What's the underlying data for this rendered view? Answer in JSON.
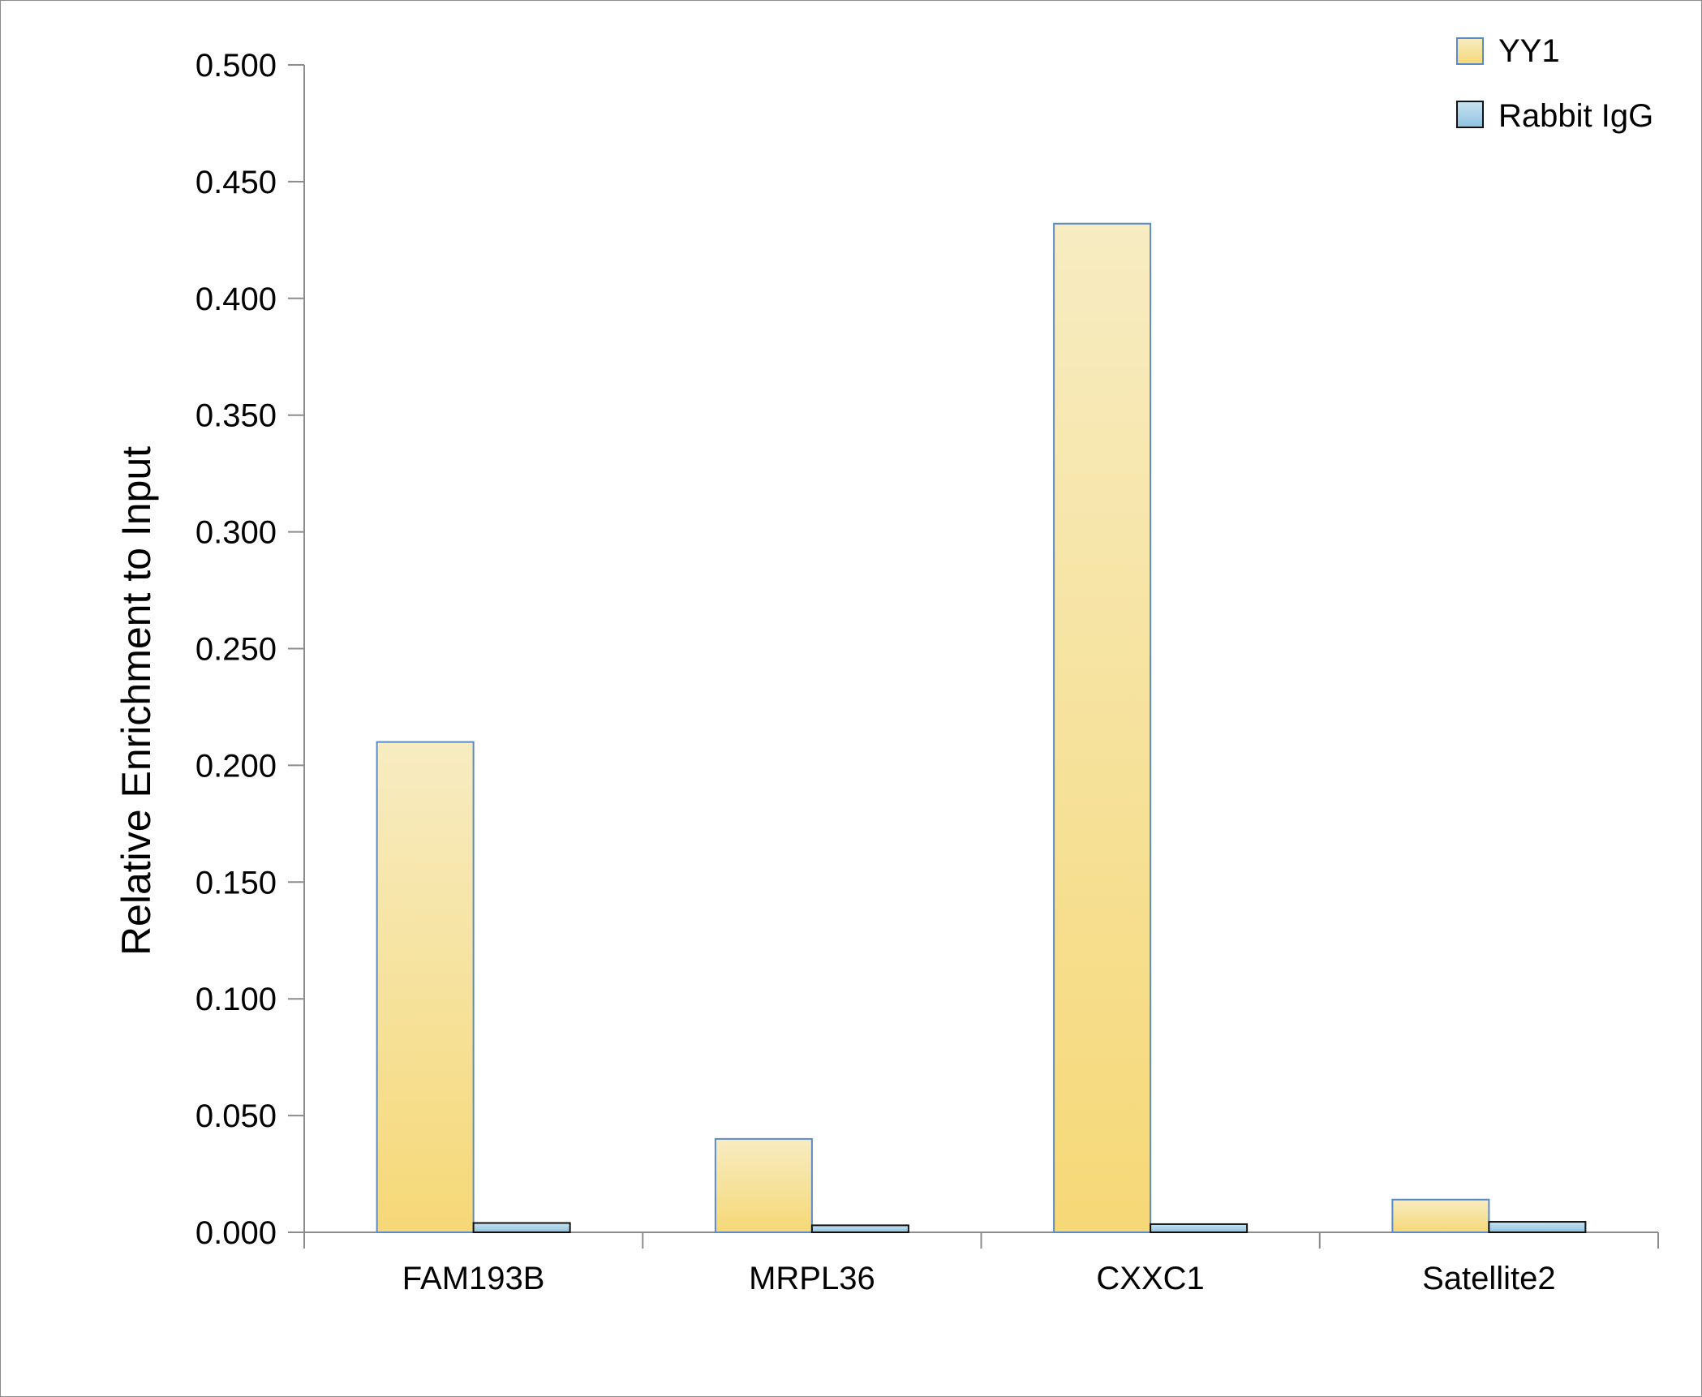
{
  "chart_data": {
    "type": "bar",
    "ylabel": "Relative Enrichment to Input",
    "xlabel": "",
    "ylim": [
      0,
      0.5
    ],
    "y_ticks": [
      "0.000",
      "0.050",
      "0.100",
      "0.150",
      "0.200",
      "0.250",
      "0.300",
      "0.350",
      "0.400",
      "0.450",
      "0.500"
    ],
    "y_tick_values": [
      0,
      0.05,
      0.1,
      0.15,
      0.2,
      0.25,
      0.3,
      0.35,
      0.4,
      0.45,
      0.5
    ],
    "categories": [
      "FAM193B",
      "MRPL36",
      "CXXC1",
      "Satellite2"
    ],
    "series": [
      {
        "name": "YY1",
        "values": [
          0.21,
          0.04,
          0.432,
          0.014
        ],
        "color_top": "#f7ecc2",
        "color_bottom": "#f6d877",
        "stroke": "#5b8bc6"
      },
      {
        "name": "Rabbit IgG",
        "values": [
          0.004,
          0.003,
          0.0035,
          0.0045
        ],
        "color_top": "#c9e3f1",
        "color_bottom": "#8ec2e0",
        "stroke": "#111111"
      }
    ],
    "legend_position": "top-right",
    "grid": false
  }
}
